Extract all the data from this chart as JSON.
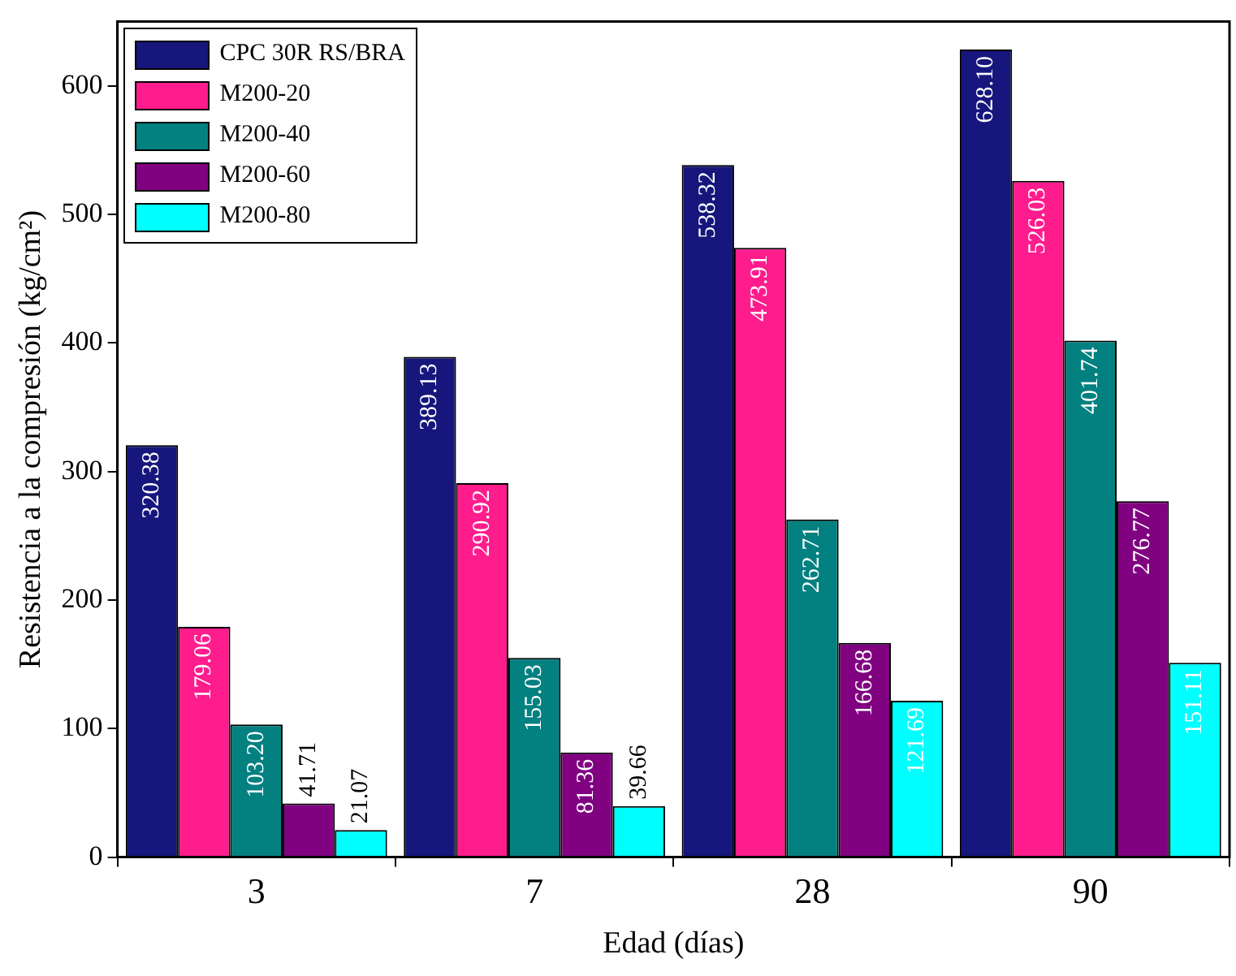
{
  "chart_data": {
    "type": "bar",
    "xlabel": "Edad (días)",
    "ylabel": "Resistencia a la compresión (kg/cm²)",
    "categories": [
      "3",
      "7",
      "28",
      "90"
    ],
    "series": [
      {
        "name": "CPC 30R RS/BRA",
        "color": "#16167c",
        "values": [
          320.38,
          389.13,
          538.32,
          628.1
        ],
        "value_labels": [
          "320.38",
          "389.13",
          "538.32",
          "628.10"
        ]
      },
      {
        "name": "M200-20",
        "color": "#ff1c8c",
        "values": [
          179.06,
          290.92,
          473.91,
          526.03
        ],
        "value_labels": [
          "179.06",
          "290.92",
          "473.91",
          "526.03"
        ]
      },
      {
        "name": "M200-40",
        "color": "#038080",
        "values": [
          103.2,
          155.03,
          262.71,
          401.74
        ],
        "value_labels": [
          "103.20",
          "155.03",
          "262.71",
          "401.74"
        ]
      },
      {
        "name": "M200-60",
        "color": "#810281",
        "values": [
          41.71,
          81.36,
          166.68,
          276.77
        ],
        "value_labels": [
          "41.71",
          "81.36",
          "166.68",
          "276.77"
        ]
      },
      {
        "name": "M200-80",
        "color": "#00ffff",
        "values": [
          21.07,
          39.66,
          121.69,
          151.11
        ],
        "value_labels": [
          "21.07",
          "39.66",
          "121.69",
          "151.11"
        ]
      }
    ],
    "ylim": [
      0,
      650
    ],
    "yticks": [
      0,
      100,
      200,
      300,
      400,
      500,
      600
    ],
    "grid": false,
    "legend": "top left"
  }
}
